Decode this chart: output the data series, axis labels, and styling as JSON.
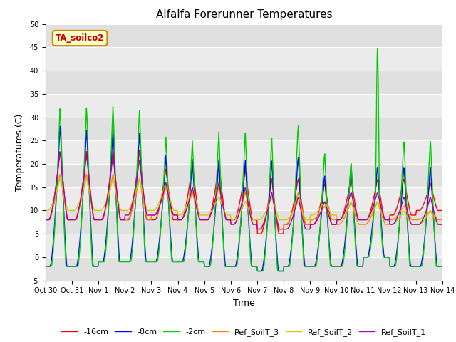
{
  "title": "Alfalfa Forerunner Temperatures",
  "xlabel": "Time",
  "ylabel": "Temperatures (C)",
  "ylim": [
    -5,
    50
  ],
  "annotation_text": "TA_soilco2",
  "annotation_color": "#cc0000",
  "annotation_bg": "#ffffcc",
  "annotation_border": "#cc8800",
  "series_colors": {
    "-16cm": "#ff0000",
    "-8cm": "#0000ff",
    "-2cm": "#00cc00",
    "Ref_SoilT_3": "#ff8800",
    "Ref_SoilT_2": "#cccc00",
    "Ref_SoilT_1": "#aa00aa"
  },
  "xtick_labels": [
    "Oct 30",
    "Oct 31",
    "Nov 1",
    "Nov 2",
    "Nov 3",
    "Nov 4",
    "Nov 5",
    "Nov 6",
    "Nov 7",
    "Nov 8",
    "Nov 9",
    "Nov 10",
    "Nov 11",
    "Nov 12",
    "Nov 13",
    "Nov 14"
  ],
  "band_color_light": "#e8e8e8",
  "band_color_dark": "#d8d8d8",
  "plot_bg": "#e8e8e8"
}
